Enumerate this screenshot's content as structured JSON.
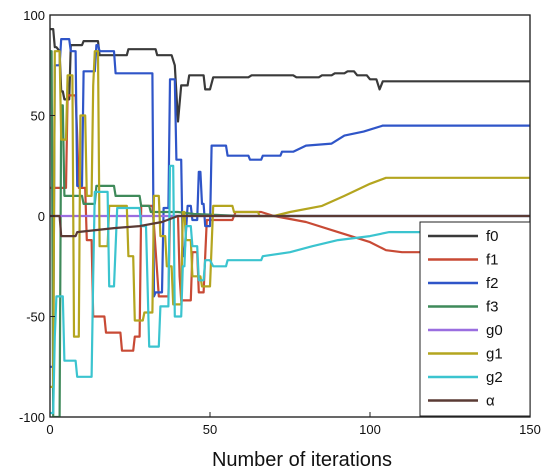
{
  "chart_data": {
    "type": "line",
    "title": "",
    "xlabel": "Number of iterations",
    "ylabel": "",
    "xlim": [
      0,
      150
    ],
    "ylim": [
      -100,
      100
    ],
    "xticks": [
      0,
      50,
      100,
      150
    ],
    "yticks": [
      -100,
      -50,
      0,
      50,
      100
    ],
    "grid": false,
    "legend_position": "bottom-right",
    "series": [
      {
        "name": "f0",
        "color": "#3a3a3a",
        "points": [
          [
            0,
            93
          ],
          [
            1,
            93
          ],
          [
            1.5,
            84
          ],
          [
            2,
            84
          ],
          [
            3,
            82
          ],
          [
            3.5,
            62
          ],
          [
            4,
            62
          ],
          [
            4.5,
            58
          ],
          [
            6,
            58
          ],
          [
            6.5,
            85
          ],
          [
            10,
            85
          ],
          [
            10.5,
            87
          ],
          [
            15,
            87
          ],
          [
            15.5,
            80
          ],
          [
            24,
            80
          ],
          [
            24.5,
            83
          ],
          [
            33,
            83
          ],
          [
            33.5,
            80
          ],
          [
            38,
            80
          ],
          [
            39,
            75
          ],
          [
            40,
            47
          ],
          [
            41,
            65
          ],
          [
            43,
            65
          ],
          [
            43.5,
            70
          ],
          [
            48,
            70
          ],
          [
            48.5,
            63
          ],
          [
            50,
            63
          ],
          [
            51,
            69
          ],
          [
            62,
            69
          ],
          [
            63,
            70
          ],
          [
            76,
            70
          ],
          [
            77,
            69
          ],
          [
            84,
            69
          ],
          [
            85,
            70
          ],
          [
            88,
            70
          ],
          [
            89,
            71
          ],
          [
            92,
            71
          ],
          [
            93,
            72
          ],
          [
            95,
            72
          ],
          [
            96,
            70
          ],
          [
            99,
            70
          ],
          [
            100,
            68
          ],
          [
            102,
            68
          ],
          [
            103,
            63
          ],
          [
            104,
            67
          ],
          [
            110,
            67
          ],
          [
            150,
            67
          ]
        ]
      },
      {
        "name": "f1",
        "color": "#c84a35",
        "points": [
          [
            0,
            14
          ],
          [
            5,
            14
          ],
          [
            5.5,
            60
          ],
          [
            8,
            60
          ],
          [
            8.5,
            40
          ],
          [
            9,
            14
          ],
          [
            11,
            14
          ],
          [
            11.5,
            -12
          ],
          [
            13,
            -12
          ],
          [
            13.5,
            -50
          ],
          [
            17,
            -50
          ],
          [
            17.5,
            -58
          ],
          [
            22,
            -58
          ],
          [
            22.5,
            -67
          ],
          [
            26,
            -67
          ],
          [
            26.5,
            -60
          ],
          [
            28,
            -60
          ],
          [
            28.5,
            5
          ],
          [
            32,
            5
          ],
          [
            32.5,
            -5
          ],
          [
            34,
            -40
          ],
          [
            37,
            -40
          ],
          [
            37.5,
            0
          ],
          [
            40,
            0
          ],
          [
            40.5,
            -30
          ],
          [
            41,
            -42
          ],
          [
            44,
            -42
          ],
          [
            44.5,
            -18
          ],
          [
            46,
            -18
          ],
          [
            46.5,
            -38
          ],
          [
            48,
            -38
          ],
          [
            49,
            -2
          ],
          [
            57,
            -2
          ],
          [
            58,
            2
          ],
          [
            66,
            2
          ],
          [
            70,
            0
          ],
          [
            80,
            -3
          ],
          [
            90,
            -8
          ],
          [
            100,
            -13
          ],
          [
            105,
            -17
          ],
          [
            110,
            -18
          ],
          [
            150,
            -18
          ]
        ]
      },
      {
        "name": "f2",
        "color": "#2f55c8",
        "points": [
          [
            0,
            -75
          ],
          [
            1,
            -75
          ],
          [
            1.5,
            75
          ],
          [
            3,
            75
          ],
          [
            3.5,
            88
          ],
          [
            6,
            88
          ],
          [
            6.5,
            82
          ],
          [
            8,
            82
          ],
          [
            8.5,
            15
          ],
          [
            10,
            15
          ],
          [
            10.5,
            72
          ],
          [
            14,
            72
          ],
          [
            14.5,
            85
          ],
          [
            15,
            85
          ],
          [
            15.5,
            82
          ],
          [
            20,
            82
          ],
          [
            20.5,
            71
          ],
          [
            32,
            71
          ],
          [
            32.5,
            -40
          ],
          [
            33,
            -38
          ],
          [
            35,
            -38
          ],
          [
            35.5,
            4
          ],
          [
            37,
            4
          ],
          [
            37.5,
            68
          ],
          [
            39,
            68
          ],
          [
            39.5,
            28
          ],
          [
            41,
            28
          ],
          [
            41.5,
            -20
          ],
          [
            42,
            -20
          ],
          [
            43,
            5
          ],
          [
            44,
            5
          ],
          [
            44.5,
            -2
          ],
          [
            46,
            -2
          ],
          [
            46.5,
            22
          ],
          [
            47,
            22
          ],
          [
            47.5,
            6
          ],
          [
            48,
            6
          ],
          [
            48.5,
            -5
          ],
          [
            50,
            -5
          ],
          [
            50.5,
            35
          ],
          [
            55,
            35
          ],
          [
            55.5,
            30
          ],
          [
            62,
            30
          ],
          [
            62.5,
            28
          ],
          [
            66,
            28
          ],
          [
            66.5,
            30
          ],
          [
            72,
            30
          ],
          [
            72.5,
            32
          ],
          [
            76,
            32
          ],
          [
            80,
            35
          ],
          [
            88,
            36
          ],
          [
            92,
            40
          ],
          [
            98,
            42
          ],
          [
            104,
            45
          ],
          [
            110,
            45
          ],
          [
            150,
            45
          ]
        ]
      },
      {
        "name": "f3",
        "color": "#3f8a5a",
        "points": [
          [
            0,
            82
          ],
          [
            0.5,
            82
          ],
          [
            1,
            -100
          ],
          [
            3,
            -100
          ],
          [
            3.5,
            55
          ],
          [
            4,
            55
          ],
          [
            4.5,
            10
          ],
          [
            10,
            10
          ],
          [
            10.5,
            6
          ],
          [
            14,
            6
          ],
          [
            14.5,
            15
          ],
          [
            20,
            15
          ],
          [
            20.5,
            10
          ],
          [
            28,
            10
          ],
          [
            28.5,
            5
          ],
          [
            31,
            5
          ],
          [
            31.5,
            2
          ],
          [
            40,
            2
          ],
          [
            45,
            1
          ],
          [
            60,
            0
          ],
          [
            150,
            0
          ]
        ]
      },
      {
        "name": "g0",
        "color": "#9a6ee0",
        "points": [
          [
            0,
            0
          ],
          [
            150,
            0
          ]
        ]
      },
      {
        "name": "g1",
        "color": "#b4a51f",
        "points": [
          [
            0,
            -85
          ],
          [
            1,
            -85
          ],
          [
            1.5,
            82
          ],
          [
            3,
            82
          ],
          [
            3.5,
            38
          ],
          [
            5,
            38
          ],
          [
            5.5,
            70
          ],
          [
            7,
            70
          ],
          [
            7.5,
            -60
          ],
          [
            9,
            -60
          ],
          [
            9.5,
            50
          ],
          [
            11,
            50
          ],
          [
            11.5,
            10
          ],
          [
            13,
            10
          ],
          [
            13.5,
            65
          ],
          [
            14,
            82
          ],
          [
            15,
            82
          ],
          [
            15.5,
            -15
          ],
          [
            18,
            -15
          ],
          [
            18.5,
            5
          ],
          [
            24,
            5
          ],
          [
            24.5,
            -20
          ],
          [
            26,
            -20
          ],
          [
            26.5,
            -52
          ],
          [
            29,
            -52
          ],
          [
            29.5,
            -48
          ],
          [
            32,
            -48
          ],
          [
            32.5,
            10
          ],
          [
            34,
            10
          ],
          [
            34.5,
            -10
          ],
          [
            36,
            -10
          ],
          [
            36.5,
            -25
          ],
          [
            38,
            -25
          ],
          [
            38.5,
            -44
          ],
          [
            41,
            -44
          ],
          [
            41.5,
            2
          ],
          [
            42,
            2
          ],
          [
            42.5,
            -12
          ],
          [
            44,
            -12
          ],
          [
            44.5,
            -30
          ],
          [
            47,
            -30
          ],
          [
            47.5,
            -35
          ],
          [
            50,
            -35
          ],
          [
            51,
            5
          ],
          [
            57,
            5
          ],
          [
            57.5,
            2
          ],
          [
            65,
            2
          ],
          [
            65.5,
            0
          ],
          [
            70,
            0
          ],
          [
            75,
            2
          ],
          [
            85,
            5
          ],
          [
            92,
            10
          ],
          [
            100,
            16
          ],
          [
            105,
            19
          ],
          [
            110,
            19
          ],
          [
            150,
            19
          ]
        ]
      },
      {
        "name": "g2",
        "color": "#3bc4cf",
        "points": [
          [
            0,
            -98
          ],
          [
            1,
            -98
          ],
          [
            1.5,
            -60
          ],
          [
            2,
            -40
          ],
          [
            4,
            -40
          ],
          [
            4.5,
            -72
          ],
          [
            8,
            -72
          ],
          [
            8.5,
            -80
          ],
          [
            13,
            -80
          ],
          [
            13.5,
            -30
          ],
          [
            14,
            12
          ],
          [
            18,
            12
          ],
          [
            18.5,
            -35
          ],
          [
            20,
            -35
          ],
          [
            21,
            4
          ],
          [
            28,
            4
          ],
          [
            28.5,
            -5
          ],
          [
            30,
            -5
          ],
          [
            31,
            -65
          ],
          [
            34,
            -65
          ],
          [
            34.5,
            -45
          ],
          [
            37,
            -45
          ],
          [
            37.5,
            25
          ],
          [
            38.5,
            25
          ],
          [
            39,
            -50
          ],
          [
            41,
            -50
          ],
          [
            41.5,
            -25
          ],
          [
            42,
            -25
          ],
          [
            42.5,
            -5
          ],
          [
            44,
            -5
          ],
          [
            44.5,
            -15
          ],
          [
            46,
            -15
          ],
          [
            46.5,
            -32
          ],
          [
            48,
            -32
          ],
          [
            48.5,
            -22
          ],
          [
            50,
            -22
          ],
          [
            51,
            -25
          ],
          [
            55,
            -25
          ],
          [
            55.5,
            -22
          ],
          [
            66,
            -22
          ],
          [
            66.5,
            -20
          ],
          [
            75,
            -18
          ],
          [
            82,
            -15
          ],
          [
            90,
            -12
          ],
          [
            100,
            -10
          ],
          [
            106,
            -8
          ],
          [
            150,
            -8
          ]
        ]
      },
      {
        "name": "α",
        "color": "#5a3a34",
        "points": [
          [
            0,
            0
          ],
          [
            3,
            0
          ],
          [
            3.5,
            -10
          ],
          [
            8,
            -10
          ],
          [
            8.5,
            -8
          ],
          [
            20,
            -6
          ],
          [
            28,
            -5
          ],
          [
            35,
            -3
          ],
          [
            40,
            0
          ],
          [
            150,
            0
          ]
        ]
      }
    ]
  }
}
